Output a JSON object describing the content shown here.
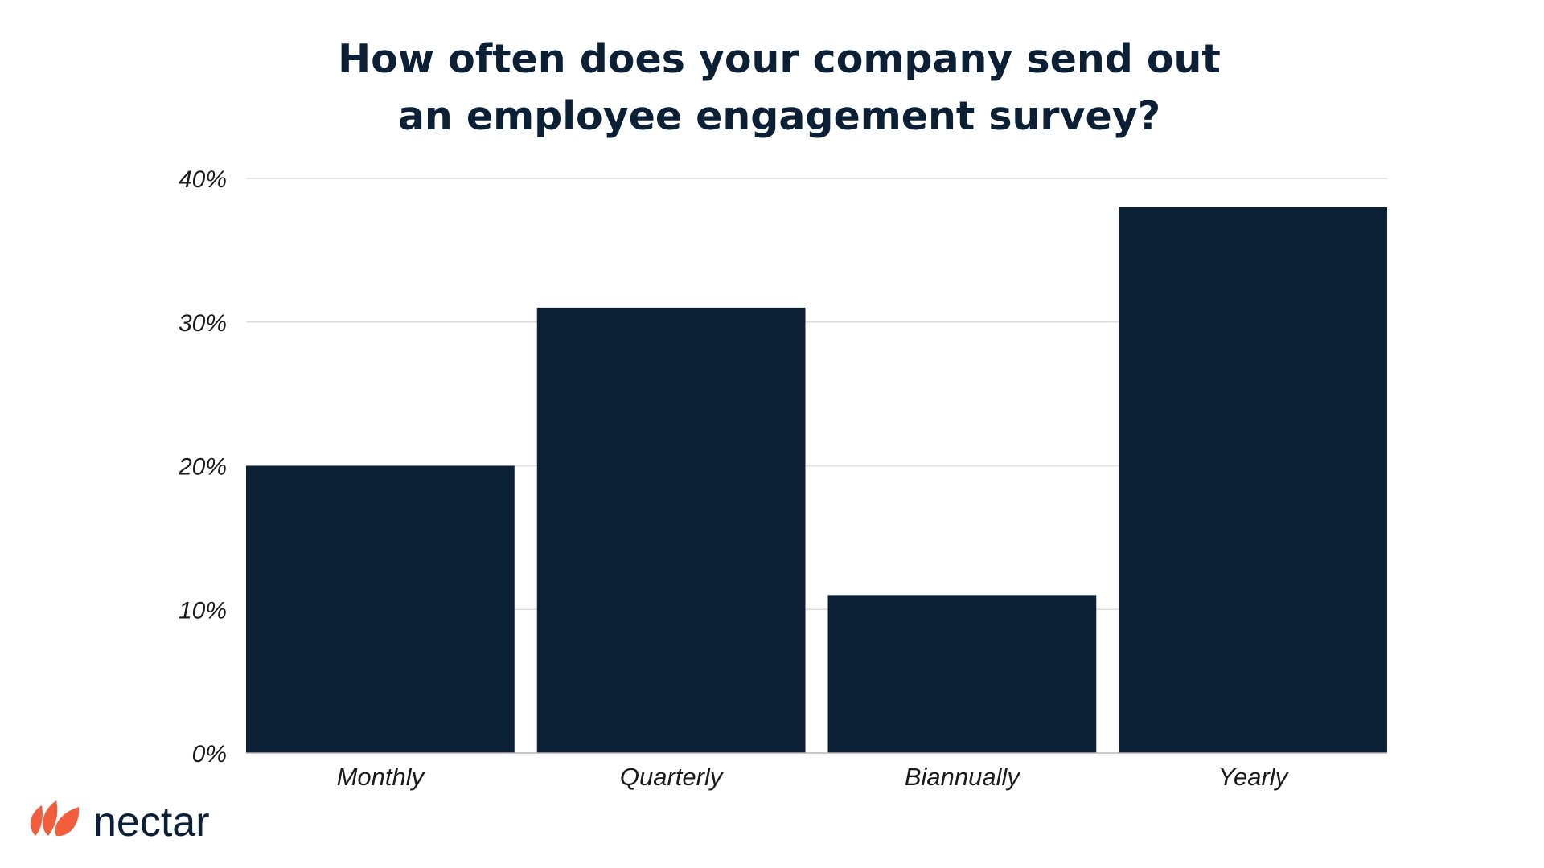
{
  "chart_data": {
    "type": "bar",
    "title_lines": [
      "How often does your company send out",
      "an employee engagement survey?"
    ],
    "categories": [
      "Monthly",
      "Quarterly",
      "Biannually",
      "Yearly"
    ],
    "values": [
      20,
      31,
      11,
      38
    ],
    "yticks": [
      0,
      10,
      20,
      30,
      40
    ],
    "ytick_labels": [
      "0%",
      "10%",
      "20%",
      "30%",
      "40%"
    ],
    "ylim": [
      0,
      40
    ],
    "grid": true,
    "legend": "none",
    "bar_color": "#0b1f35"
  },
  "brand": {
    "name": "nectar",
    "mark_color": "#f25d3c",
    "text_color": "#0b1f35"
  }
}
